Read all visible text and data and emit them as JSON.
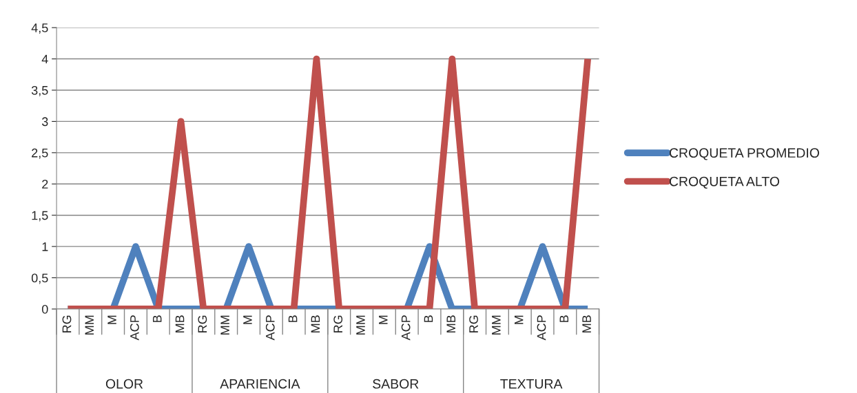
{
  "chart_data": {
    "type": "line",
    "categories": [
      "RG",
      "MM",
      "M",
      "ACP",
      "B",
      "MB",
      "RG",
      "MM",
      "M",
      "ACP",
      "B",
      "MB",
      "RG",
      "MM",
      "M",
      "ACP",
      "B",
      "MB",
      "RG",
      "MM",
      "M",
      "ACP",
      "B",
      "MB"
    ],
    "series": [
      {
        "name": "CROQUETA PROMEDIO",
        "color": "#4f81bd",
        "values": [
          0,
          0,
          0,
          1,
          0,
          0,
          0,
          0,
          1,
          0,
          0,
          0,
          0,
          0,
          0,
          0,
          1,
          0,
          0,
          0,
          0,
          1,
          0,
          0
        ]
      },
      {
        "name": "CROQUETA ALTO",
        "color": "#c0504d",
        "values": [
          0,
          0,
          0,
          0,
          0,
          3,
          0,
          0,
          0,
          0,
          0,
          4,
          0,
          0,
          0,
          0,
          0,
          4,
          0,
          0,
          0,
          0,
          0,
          4
        ]
      }
    ],
    "annotations": [
      "OLOR",
      "APARIENCIA",
      "SABOR",
      "TEXTURA"
    ],
    "ylim": [
      0,
      4.5
    ],
    "yticks": [
      0,
      {
        "value": 0.5,
        "label": "0,5"
      },
      1,
      {
        "value": 1.5,
        "label": "1,5"
      },
      2,
      {
        "value": 2.5,
        "label": "2,5"
      },
      3,
      {
        "value": 3.5,
        "label": "3,5"
      },
      4,
      {
        "value": 4.5,
        "label": "4,5"
      }
    ],
    "grid": "y",
    "legend": "right",
    "marker": "none",
    "line_style": "solid"
  }
}
